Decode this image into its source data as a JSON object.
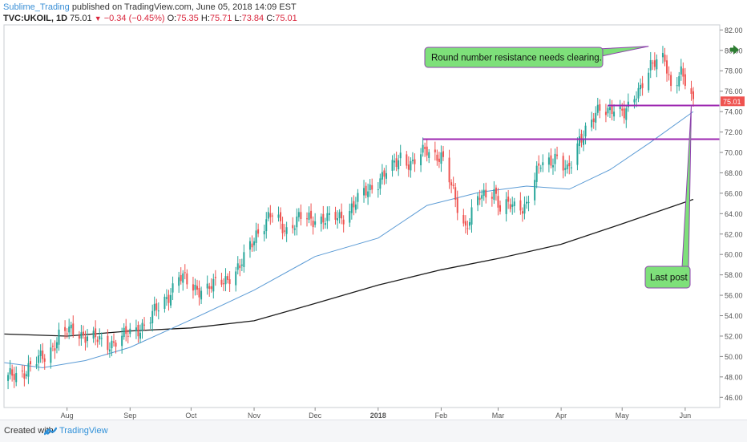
{
  "header": {
    "author": "Sublime_Trading",
    "published_text": "published on TradingView.com, June 05, 2018 14:09 EST",
    "symbol": "TVC:UKOIL, 1D",
    "last": "75.01",
    "change": "−0.34 (−0.45%)",
    "o_label": "O:",
    "o_value": "75.35",
    "h_label": "H:",
    "h_value": "75.71",
    "l_label": "L:",
    "l_value": "73.84",
    "c_label": "C:",
    "c_value": "75.01"
  },
  "footer": {
    "created_with": "Created with",
    "brand": "TradingView"
  },
  "annotations": {
    "resistance_note": "Round number resistance needs clearing.",
    "last_post_note": "Last post"
  },
  "colors": {
    "up": "#26a69a",
    "down": "#ef5350",
    "ma50": "#5b9bd5",
    "ma200": "#1a1a1a",
    "level_line": "#9c27b0",
    "callout_fill": "#7ee07a",
    "price_badge": "#ef5350"
  },
  "chart_data": {
    "type": "candlestick",
    "title": "TVC:UKOIL, 1D",
    "y_axis": {
      "range": [
        45,
        82.5
      ],
      "ticks": [
        "82.00",
        "80.00",
        "78.00",
        "76.00",
        "74.00",
        "72.00",
        "70.00",
        "68.00",
        "66.00",
        "64.00",
        "62.00",
        "60.00",
        "58.00",
        "56.00",
        "54.00",
        "52.00",
        "50.00",
        "48.00",
        "46.00"
      ],
      "price_badge": "75.01"
    },
    "x_axis": {
      "labels": [
        "Aug",
        "Sep",
        "Oct",
        "Nov",
        "Dec",
        "2018",
        "Feb",
        "Mar",
        "Apr",
        "May",
        "Jun"
      ]
    },
    "close_path": [
      [
        "2017-07-01",
        47.6
      ],
      [
        "2017-07-14",
        49.0
      ],
      [
        "2017-07-22",
        50.2
      ],
      [
        "2017-07-28",
        52.0
      ],
      [
        "2017-08-05",
        52.6
      ],
      [
        "2017-08-12",
        51.9
      ],
      [
        "2017-08-20",
        51.2
      ],
      [
        "2017-08-28",
        51.8
      ],
      [
        "2017-09-03",
        52.5
      ],
      [
        "2017-09-10",
        53.5
      ],
      [
        "2017-09-18",
        55.5
      ],
      [
        "2017-09-25",
        57.8
      ],
      [
        "2017-10-02",
        56.8
      ],
      [
        "2017-10-10",
        56.6
      ],
      [
        "2017-10-18",
        57.7
      ],
      [
        "2017-10-25",
        58.6
      ],
      [
        "2017-11-02",
        62.2
      ],
      [
        "2017-11-10",
        63.8
      ],
      [
        "2017-11-17",
        62.5
      ],
      [
        "2017-11-24",
        63.5
      ],
      [
        "2017-12-01",
        63.6
      ],
      [
        "2017-12-08",
        63.3
      ],
      [
        "2017-12-15",
        63.9
      ],
      [
        "2017-12-22",
        65.2
      ],
      [
        "2017-12-29",
        66.8
      ],
      [
        "2018-01-08",
        68.4
      ],
      [
        "2018-01-12",
        69.8
      ],
      [
        "2018-01-18",
        68.7
      ],
      [
        "2018-01-25",
        70.4
      ],
      [
        "2018-02-01",
        69.5
      ],
      [
        "2018-02-07",
        66.0
      ],
      [
        "2018-02-13",
        62.7
      ],
      [
        "2018-02-20",
        65.5
      ],
      [
        "2018-02-27",
        66.5
      ],
      [
        "2018-03-02",
        64.3
      ],
      [
        "2018-03-08",
        64.8
      ],
      [
        "2018-03-15",
        64.9
      ],
      [
        "2018-03-22",
        68.9
      ],
      [
        "2018-03-29",
        69.6
      ],
      [
        "2018-04-04",
        67.9
      ],
      [
        "2018-04-10",
        71.5
      ],
      [
        "2018-04-16",
        72.8
      ],
      [
        "2018-04-20",
        74.2
      ],
      [
        "2018-04-26",
        74.5
      ],
      [
        "2018-05-02",
        73.5
      ],
      [
        "2018-05-08",
        76.0
      ],
      [
        "2018-05-15",
        78.2
      ],
      [
        "2018-05-22",
        79.5
      ],
      [
        "2018-05-25",
        76.5
      ],
      [
        "2018-05-30",
        77.5
      ],
      [
        "2018-06-01",
        76.8
      ],
      [
        "2018-06-05",
        75.0
      ]
    ],
    "series": [
      {
        "name": "",
        "type": "moving_average_50",
        "points": [
          [
            "2017-07-01",
            49.4
          ],
          [
            "2017-07-20",
            48.9
          ],
          [
            "2017-08-10",
            49.6
          ],
          [
            "2017-09-01",
            50.9
          ],
          [
            "2017-10-01",
            53.6
          ],
          [
            "2017-11-01",
            56.5
          ],
          [
            "2017-12-01",
            59.8
          ],
          [
            "2018-01-01",
            61.6
          ],
          [
            "2018-01-25",
            64.8
          ],
          [
            "2018-02-20",
            66.1
          ],
          [
            "2018-03-15",
            66.7
          ],
          [
            "2018-04-05",
            66.4
          ],
          [
            "2018-04-25",
            68.3
          ],
          [
            "2018-05-15",
            71.0
          ],
          [
            "2018-06-05",
            74.0
          ]
        ]
      },
      {
        "name": "",
        "type": "moving_average_200",
        "points": [
          [
            "2017-07-01",
            52.2
          ],
          [
            "2017-08-01",
            52.0
          ],
          [
            "2017-09-01",
            52.5
          ],
          [
            "2017-10-01",
            52.8
          ],
          [
            "2017-11-01",
            53.5
          ],
          [
            "2017-12-01",
            55.2
          ],
          [
            "2018-01-01",
            57.0
          ],
          [
            "2018-02-01",
            58.5
          ],
          [
            "2018-03-01",
            59.6
          ],
          [
            "2018-04-01",
            61.0
          ],
          [
            "2018-05-01",
            63.0
          ],
          [
            "2018-06-05",
            65.4
          ]
        ]
      }
    ],
    "horizontal_levels": [
      {
        "value": 71.3,
        "from": "2018-01-23"
      },
      {
        "value": 74.6,
        "from": "2018-04-24"
      }
    ],
    "annotations": [
      {
        "text": "Round number resistance needs clearing.",
        "points_to": [
          "2018-05-14",
          80.4
        ]
      },
      {
        "text": "Last post",
        "points_to": [
          "2018-06-04",
          74.6
        ]
      }
    ],
    "grid": false,
    "legend": "none"
  }
}
